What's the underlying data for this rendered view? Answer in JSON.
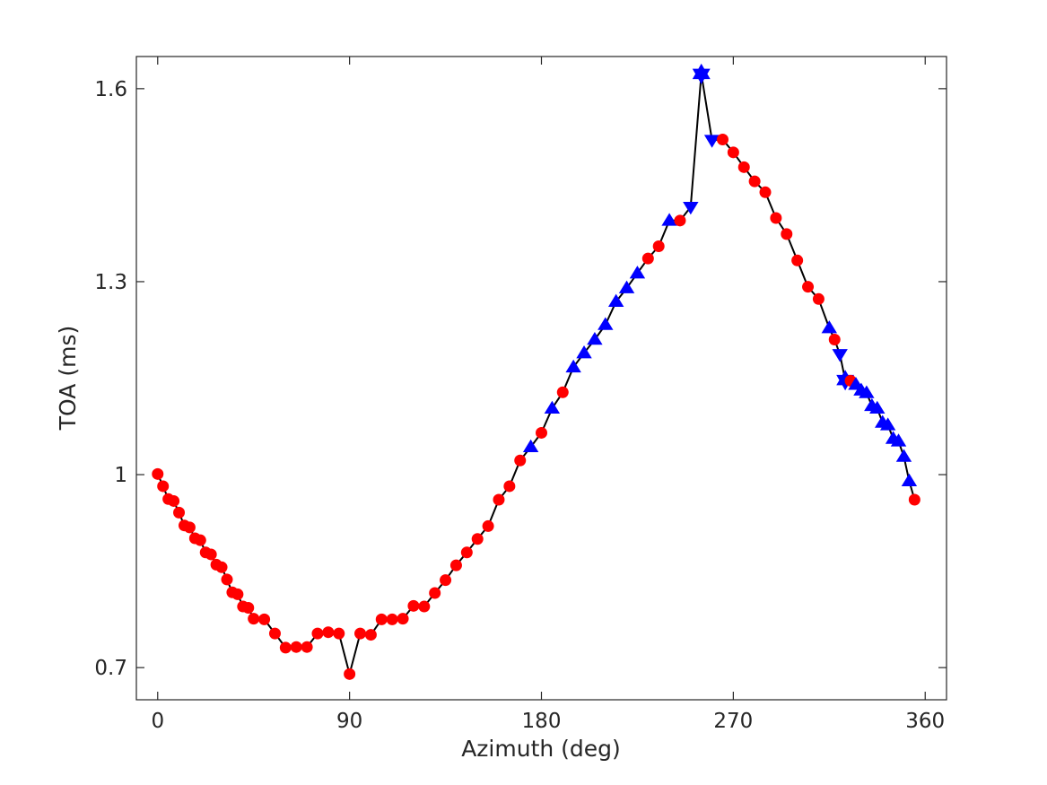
{
  "figure": {
    "background": "#ffffff",
    "axis_color": "#262626",
    "text_color": "#262626"
  },
  "chart_data": {
    "type": "line",
    "title": "",
    "xlabel": "Azimuth (deg)",
    "ylabel": "TOA (ms)",
    "xlim": [
      -10,
      370
    ],
    "ylim": [
      0.65,
      1.65
    ],
    "xticks": [
      0,
      90,
      180,
      270,
      360
    ],
    "xtick_labels": [
      "0",
      "90",
      "180",
      "270",
      "360"
    ],
    "yticks": [
      0.7,
      1,
      1.3,
      1.6
    ],
    "ytick_labels": [
      "0.7",
      "1",
      "1.3",
      "1.6"
    ],
    "grid": false,
    "legend": false,
    "line_color": "#000000",
    "line_width": 2,
    "marker_styles": {
      "c": {
        "shape": "circle",
        "color": "#ff0000"
      },
      "u": {
        "shape": "triangle-up",
        "color": "#0000ff"
      },
      "d": {
        "shape": "triangle-down",
        "color": "#0000ff"
      },
      "s": {
        "shape": "hexagram-star",
        "color": "#0000ff"
      }
    },
    "x": [
      0,
      2.5,
      5,
      7.5,
      10,
      12.5,
      15,
      17.5,
      20,
      22.5,
      25,
      27.5,
      30,
      32.5,
      35,
      37.5,
      40,
      42.5,
      45,
      50,
      55,
      60,
      65,
      70,
      75,
      80,
      85,
      90,
      95,
      100,
      105,
      110,
      115,
      120,
      125,
      130,
      135,
      140,
      145,
      150,
      155,
      160,
      165,
      170,
      175,
      180,
      185,
      190,
      195,
      200,
      205,
      210,
      215,
      220,
      225,
      230,
      235,
      240,
      245,
      250,
      255,
      260,
      265,
      270,
      275,
      280,
      285,
      290,
      295,
      300,
      305,
      310,
      315,
      317.5,
      320,
      322.5,
      325,
      327.5,
      330,
      332.5,
      335,
      337.5,
      340,
      342.5,
      345,
      347.5,
      350,
      352.5,
      355
    ],
    "y": [
      1.001,
      0.982,
      0.962,
      0.959,
      0.941,
      0.921,
      0.918,
      0.901,
      0.898,
      0.879,
      0.876,
      0.86,
      0.856,
      0.837,
      0.817,
      0.814,
      0.795,
      0.793,
      0.776,
      0.775,
      0.753,
      0.731,
      0.732,
      0.732,
      0.753,
      0.755,
      0.753,
      0.69,
      0.753,
      0.751,
      0.775,
      0.775,
      0.776,
      0.796,
      0.795,
      0.816,
      0.836,
      0.859,
      0.879,
      0.9,
      0.92,
      0.961,
      0.982,
      1.022,
      1.043,
      1.065,
      1.103,
      1.128,
      1.167,
      1.189,
      1.21,
      1.233,
      1.269,
      1.29,
      1.313,
      1.336,
      1.355,
      1.395,
      1.395,
      1.416,
      1.623,
      1.52,
      1.521,
      1.501,
      1.478,
      1.456,
      1.439,
      1.399,
      1.374,
      1.333,
      1.292,
      1.273,
      1.228,
      1.21,
      1.187,
      1.147,
      1.146,
      1.14,
      1.131,
      1.127,
      1.107,
      1.103,
      1.081,
      1.077,
      1.056,
      1.052,
      1.028,
      0.99,
      0.961
    ],
    "marker": [
      "c",
      "c",
      "c",
      "c",
      "c",
      "c",
      "c",
      "c",
      "c",
      "c",
      "c",
      "c",
      "c",
      "c",
      "c",
      "c",
      "c",
      "c",
      "c",
      "c",
      "c",
      "c",
      "c",
      "c",
      "c",
      "c",
      "c",
      "c",
      "c",
      "c",
      "c",
      "c",
      "c",
      "c",
      "c",
      "c",
      "c",
      "c",
      "c",
      "c",
      "c",
      "c",
      "c",
      "c",
      "u",
      "c",
      "u",
      "c",
      "u",
      "u",
      "u",
      "u",
      "u",
      "u",
      "u",
      "c",
      "c",
      "u",
      "c",
      "d",
      "s",
      "d",
      "c",
      "c",
      "c",
      "c",
      "c",
      "c",
      "c",
      "c",
      "c",
      "c",
      "u",
      "c",
      "d",
      "s",
      "c",
      "u",
      "u",
      "u",
      "u",
      "u",
      "u",
      "u",
      "u",
      "u",
      "u",
      "u",
      "c"
    ]
  }
}
